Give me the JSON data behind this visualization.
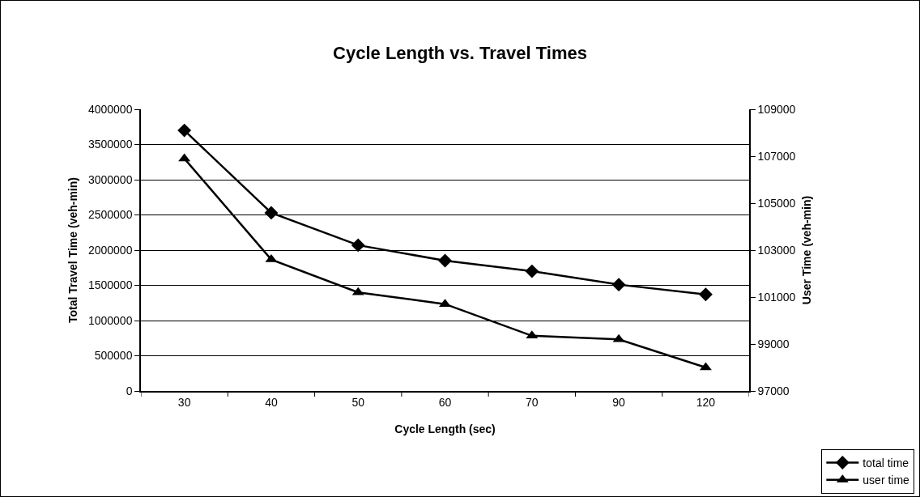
{
  "chart_data": {
    "type": "line",
    "title": "Cycle Length vs. Travel Times",
    "xlabel": "Cycle Length (sec)",
    "ylabel": "Total Travel Time (veh-min)",
    "y2label": "User Time (veh-min)",
    "categories": [
      "30",
      "40",
      "50",
      "60",
      "70",
      "90",
      "120"
    ],
    "series": [
      {
        "name": "total time",
        "color": "#000000",
        "marker": "diamond",
        "values": [
          3700000,
          2530000,
          2070000,
          1850000,
          1700000,
          1510000,
          1370000
        ]
      },
      {
        "name": "user time",
        "color": "#000000",
        "marker": "triangle",
        "axis": "y2",
        "values": [
          106900,
          102600,
          101200,
          100700,
          99350,
          99200,
          98000
        ]
      }
    ],
    "ylim": [
      0,
      4000000
    ],
    "yticks": [
      0,
      500000,
      1000000,
      1500000,
      2000000,
      2500000,
      3000000,
      3500000,
      4000000
    ],
    "y2lim": [
      97000,
      109000
    ],
    "y2ticks": [
      97000,
      99000,
      101000,
      103000,
      105000,
      107000,
      109000
    ],
    "grid": "y",
    "legend": "bottom right",
    "line_style": "solid"
  }
}
